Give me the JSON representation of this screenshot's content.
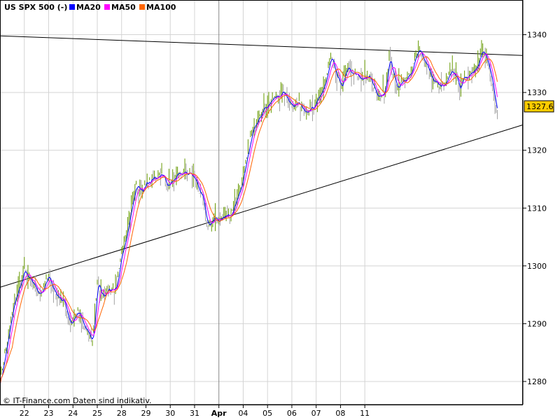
{
  "chart_data": {
    "type": "line",
    "title": "US SPX 500 (-)",
    "copyright": "© IT-Finance.com Daten sind indikativ.",
    "last_value_label": "1327.6",
    "y_range": [
      1276,
      1346
    ],
    "y_ticks": [
      1280,
      1290,
      1300,
      1310,
      1320,
      1330,
      1340
    ],
    "y_tick_labels": [
      "1280",
      "1290",
      "1300",
      "1310",
      "1320",
      "1330",
      "1340"
    ],
    "x_tick_labels": [
      "22",
      "23",
      "24",
      "25",
      "28",
      "29",
      "30",
      "31",
      "Apr",
      "04",
      "05",
      "06",
      "07",
      "08",
      "11"
    ],
    "grid": true,
    "legend": [
      {
        "name": "MA20",
        "color": "#0000ff"
      },
      {
        "name": "MA50",
        "color": "#ff00ff"
      },
      {
        "name": "MA100",
        "color": "#ff6600"
      }
    ],
    "price_color": "#669900",
    "keypoints": [
      [
        0,
        1280
      ],
      [
        0.3,
        1287
      ],
      [
        0.6,
        1294
      ],
      [
        1.0,
        1299
      ],
      [
        1.3,
        1297
      ],
      [
        1.6,
        1295
      ],
      [
        2.0,
        1298
      ],
      [
        2.3,
        1295
      ],
      [
        2.6,
        1294
      ],
      [
        2.9,
        1290
      ],
      [
        3.2,
        1292
      ],
      [
        3.5,
        1289
      ],
      [
        3.8,
        1287
      ],
      [
        4.0,
        1297
      ],
      [
        4.2,
        1295
      ],
      [
        4.5,
        1296
      ],
      [
        4.8,
        1296
      ],
      [
        5.0,
        1302
      ],
      [
        5.3,
        1308
      ],
      [
        5.6,
        1314
      ],
      [
        5.8,
        1313
      ],
      [
        6.0,
        1314
      ],
      [
        6.3,
        1315
      ],
      [
        6.6,
        1316
      ],
      [
        6.9,
        1314
      ],
      [
        7.2,
        1315
      ],
      [
        7.5,
        1316
      ],
      [
        7.8,
        1316
      ],
      [
        8.0,
        1315
      ],
      [
        8.3,
        1312
      ],
      [
        8.5,
        1307
      ],
      [
        8.8,
        1308
      ],
      [
        9.0,
        1308
      ],
      [
        9.5,
        1309
      ],
      [
        10.0,
        1315
      ],
      [
        10.3,
        1322
      ],
      [
        10.6,
        1326
      ],
      [
        11.0,
        1328
      ],
      [
        11.3,
        1329
      ],
      [
        11.6,
        1330
      ],
      [
        12.0,
        1328
      ],
      [
        12.3,
        1328
      ],
      [
        12.6,
        1327
      ],
      [
        12.9,
        1327
      ],
      [
        13.1,
        1329
      ],
      [
        13.4,
        1332
      ],
      [
        13.6,
        1336
      ],
      [
        13.8,
        1333
      ],
      [
        14.0,
        1331
      ],
      [
        14.3,
        1334
      ],
      [
        14.6,
        1333
      ],
      [
        14.9,
        1332
      ],
      [
        15.2,
        1333
      ],
      [
        15.5,
        1329
      ],
      [
        15.8,
        1330
      ],
      [
        16.0,
        1336
      ],
      [
        16.3,
        1331
      ],
      [
        16.6,
        1332
      ],
      [
        16.9,
        1333
      ],
      [
        17.2,
        1338
      ],
      [
        17.5,
        1335
      ],
      [
        17.8,
        1332
      ],
      [
        18.1,
        1331
      ],
      [
        18.3,
        1331
      ],
      [
        18.6,
        1334
      ],
      [
        18.9,
        1331
      ],
      [
        19.2,
        1333
      ],
      [
        19.5,
        1334
      ],
      [
        19.8,
        1337
      ],
      [
        20.0,
        1336
      ],
      [
        20.2,
        1332
      ],
      [
        20.35,
        1328
      ],
      [
        20.45,
        1326.5
      ]
    ],
    "trendlines": [
      {
        "x": [
          0,
          21.5
        ],
        "y": [
          1339.8,
          1336.4
        ]
      },
      {
        "x": [
          0,
          21.5
        ],
        "y": [
          1296.3,
          1324.4
        ]
      }
    ]
  }
}
